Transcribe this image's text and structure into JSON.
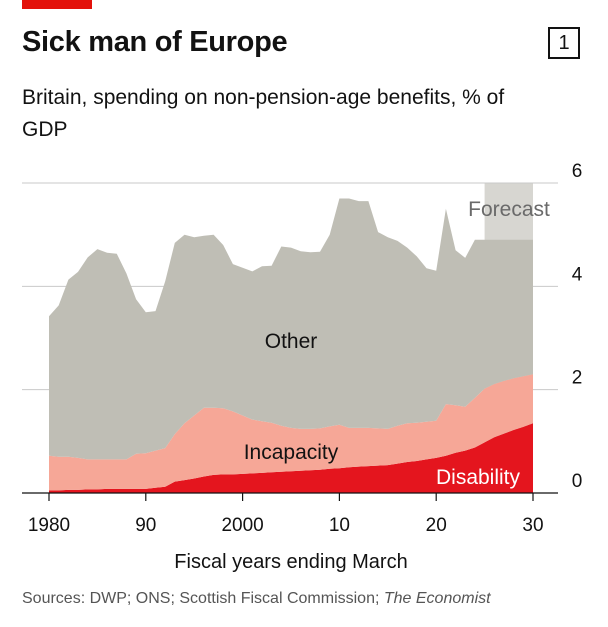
{
  "header": {
    "title": "Sick man of Europe",
    "chart_number": "1",
    "subtitle": "Britain, spending on non-pension-age benefits, % of GDP",
    "source_prefix": "Sources: DWP; ONS; Scottish Fiscal Commission; ",
    "source_italic": "The Economist"
  },
  "colors": {
    "brand_red": "#e3120b",
    "other": "#bfbeb5",
    "incapacity": "#f6a797",
    "disability": "#e4151e",
    "forecast": "#d7d6d1"
  },
  "chart_data": {
    "type": "area",
    "stacked": true,
    "title": "Sick man of Europe",
    "subtitle": "Britain, spending on non-pension-age benefits, % of GDP",
    "xlabel": "Fiscal years ending March",
    "ylabel": "",
    "xlim": [
      1978,
      2035
    ],
    "ylim": [
      0,
      6
    ],
    "x_ticks": [
      1980,
      1990,
      2000,
      2010,
      2020,
      2030
    ],
    "x_tick_labels": [
      "1980",
      "90",
      "2000",
      "10",
      "20",
      "30"
    ],
    "y_ticks": [
      0,
      2,
      4,
      6
    ],
    "y_tick_labels": [
      "0",
      "2",
      "4",
      "6"
    ],
    "grid": true,
    "forecast": {
      "label": "Forecast",
      "start": 2025,
      "end": 2030
    },
    "x": [
      1980,
      1981,
      1982,
      1983,
      1984,
      1985,
      1986,
      1987,
      1988,
      1989,
      1990,
      1991,
      1992,
      1993,
      1994,
      1995,
      1996,
      1997,
      1998,
      1999,
      2000,
      2001,
      2002,
      2003,
      2004,
      2005,
      2006,
      2007,
      2008,
      2009,
      2010,
      2011,
      2012,
      2013,
      2014,
      2015,
      2016,
      2017,
      2018,
      2019,
      2020,
      2021,
      2022,
      2023,
      2024,
      2025,
      2026,
      2027,
      2028,
      2029,
      2030
    ],
    "series": [
      {
        "name": "Disability",
        "values": [
          0.05,
          0.05,
          0.06,
          0.06,
          0.07,
          0.07,
          0.08,
          0.08,
          0.08,
          0.08,
          0.08,
          0.1,
          0.12,
          0.22,
          0.25,
          0.28,
          0.32,
          0.35,
          0.36,
          0.36,
          0.37,
          0.38,
          0.39,
          0.4,
          0.41,
          0.42,
          0.43,
          0.44,
          0.45,
          0.47,
          0.48,
          0.5,
          0.51,
          0.52,
          0.53,
          0.54,
          0.57,
          0.6,
          0.62,
          0.65,
          0.68,
          0.72,
          0.78,
          0.82,
          0.88,
          0.98,
          1.08,
          1.15,
          1.22,
          1.28,
          1.35
        ]
      },
      {
        "name": "Incapacity",
        "values": [
          0.67,
          0.65,
          0.64,
          0.62,
          0.58,
          0.58,
          0.57,
          0.57,
          0.57,
          0.68,
          0.69,
          0.72,
          0.75,
          0.92,
          1.1,
          1.22,
          1.33,
          1.3,
          1.28,
          1.22,
          1.13,
          1.04,
          1.0,
          0.96,
          0.89,
          0.84,
          0.81,
          0.8,
          0.8,
          0.82,
          0.84,
          0.76,
          0.75,
          0.74,
          0.72,
          0.7,
          0.73,
          0.75,
          0.74,
          0.73,
          0.72,
          1.0,
          0.92,
          0.85,
          0.96,
          1.04,
          1.03,
          1.02,
          1.0,
          0.98,
          0.95
        ]
      },
      {
        "name": "Other",
        "values": [
          2.7,
          2.93,
          3.43,
          3.6,
          3.91,
          4.07,
          4.0,
          3.98,
          3.6,
          2.99,
          2.73,
          2.7,
          3.23,
          3.7,
          3.65,
          3.45,
          3.33,
          3.35,
          3.16,
          2.85,
          2.86,
          2.87,
          3.0,
          3.04,
          3.47,
          3.49,
          3.44,
          3.42,
          3.42,
          3.71,
          4.38,
          4.44,
          4.39,
          4.39,
          3.8,
          3.71,
          3.58,
          3.4,
          3.22,
          2.97,
          2.9,
          3.78,
          3.0,
          2.88,
          3.06,
          2.88,
          2.79,
          2.73,
          2.68,
          2.64,
          2.6
        ]
      }
    ],
    "annotations": [
      "Other",
      "Incapacity",
      "Disability",
      "Forecast"
    ]
  }
}
